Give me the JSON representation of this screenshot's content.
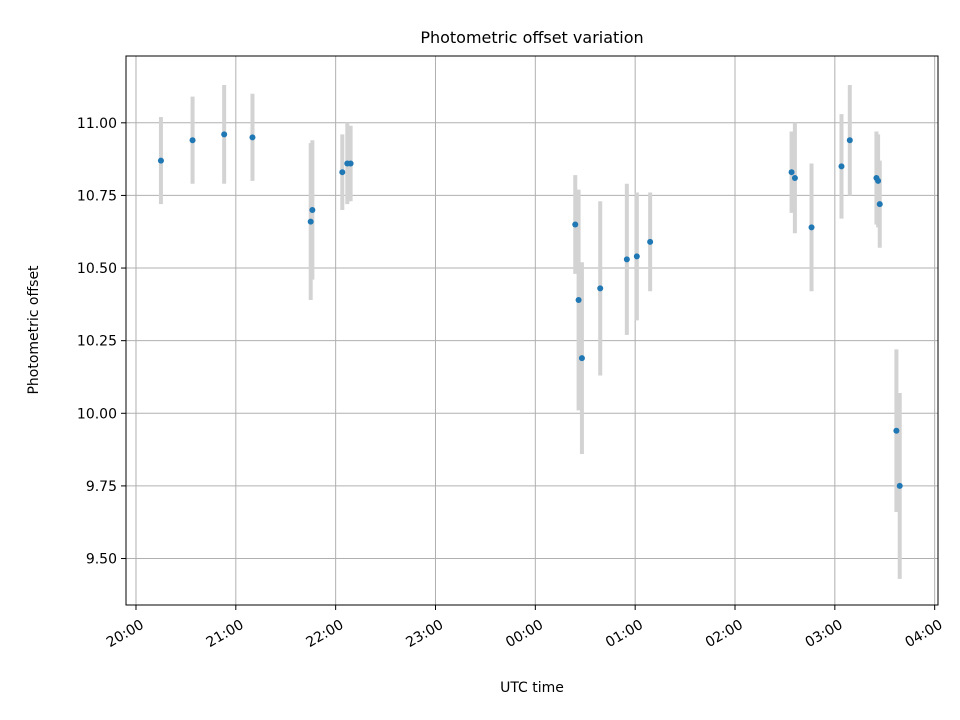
{
  "chart_data": {
    "type": "scatter",
    "title": "Photometric offset variation",
    "xlabel": "UTC time",
    "ylabel": "Photometric offset",
    "grid": true,
    "legend": "none",
    "xlim": [
      "19:54",
      "04:02"
    ],
    "ylim": [
      9.34,
      11.23
    ],
    "x_ticks": [
      "20:00",
      "21:00",
      "22:00",
      "23:00",
      "00:00",
      "01:00",
      "02:00",
      "03:00",
      "04:00"
    ],
    "y_ticks": [
      "9.50",
      "9.75",
      "10.00",
      "10.25",
      "10.50",
      "10.75",
      "11.00"
    ],
    "y_tick_values": [
      9.5,
      9.75,
      10.0,
      10.25,
      10.5,
      10.75,
      11.0
    ],
    "x_tick_rotation": 30,
    "marker_color": "#1f77b4",
    "errorbar_color": "#d3d3d3",
    "series": [
      {
        "x": [
          "20:15",
          "20:34",
          "20:53",
          "21:10",
          "21:45",
          "21:46",
          "22:04",
          "22:07",
          "22:09",
          "00:24",
          "00:26",
          "00:28",
          "00:39",
          "00:55",
          "01:01",
          "01:09",
          "02:34",
          "02:36",
          "02:46",
          "03:04",
          "03:09",
          "03:25",
          "03:26",
          "03:27",
          "03:37",
          "03:39"
        ],
        "y": [
          10.87,
          10.94,
          10.96,
          10.95,
          10.66,
          10.7,
          10.83,
          10.86,
          10.86,
          10.65,
          10.39,
          10.19,
          10.43,
          10.53,
          10.54,
          10.59,
          10.83,
          10.81,
          10.64,
          10.85,
          10.94,
          10.81,
          10.8,
          10.72,
          9.94,
          9.75
        ],
        "yerr": [
          0.15,
          0.15,
          0.17,
          0.15,
          0.27,
          0.24,
          0.13,
          0.14,
          0.13,
          0.17,
          0.38,
          0.33,
          0.3,
          0.26,
          0.22,
          0.17,
          0.14,
          0.19,
          0.22,
          0.18,
          0.19,
          0.16,
          0.16,
          0.15,
          0.28,
          0.32
        ]
      }
    ]
  }
}
